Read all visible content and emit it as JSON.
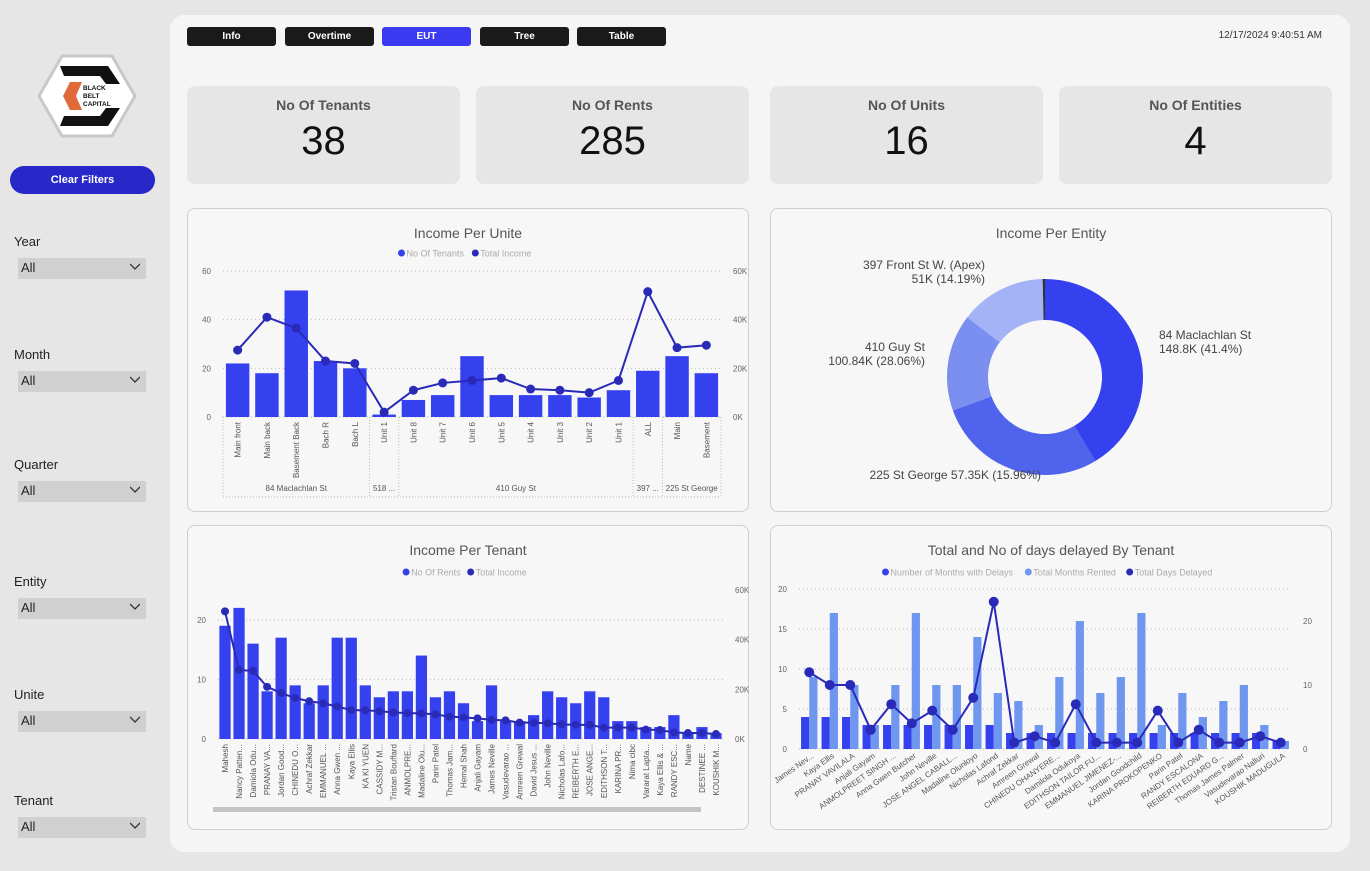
{
  "logo": {
    "text": [
      "BLACK",
      "BELT",
      "CAPITAL"
    ]
  },
  "sidebar": {
    "clear_filters": "Clear Filters",
    "filters": [
      {
        "label": "Year",
        "value": "All"
      },
      {
        "label": "Month",
        "value": "All"
      },
      {
        "label": "Quarter",
        "value": "All"
      },
      {
        "label": "Entity",
        "value": "All"
      },
      {
        "label": "Unite",
        "value": "All"
      },
      {
        "label": "Tenant",
        "value": "All"
      }
    ]
  },
  "tabs": [
    {
      "label": "Info"
    },
    {
      "label": "Overtime"
    },
    {
      "label": "EUT",
      "active": true
    },
    {
      "label": "Tree"
    },
    {
      "label": "Table"
    }
  ],
  "datetime": "12/17/2024 9:40:51 AM",
  "kpis": [
    {
      "title": "No Of Tenants",
      "value": "38"
    },
    {
      "title": "No Of Rents",
      "value": "285"
    },
    {
      "title": "No Of Units",
      "value": "16"
    },
    {
      "title": "No Of Entities",
      "value": "4"
    }
  ],
  "colors": {
    "bar": "#3540ee",
    "line": "#2a2ab8",
    "light_bar": "#7097f0",
    "donut": [
      "#3540ee",
      "#4f63ec",
      "#7b8ff0",
      "#a4b2f6",
      "#333333"
    ]
  },
  "chart_data": [
    {
      "type": "bar",
      "title": "Income Per Unite",
      "legend": [
        "No Of Tenants",
        "Total Income"
      ],
      "ylim": [
        0,
        60
      ],
      "y2lim": [
        0,
        60
      ],
      "yticks": [
        "0",
        "20",
        "40",
        "60"
      ],
      "y2ticks": [
        "0K",
        "20K",
        "40K",
        "60K"
      ],
      "grid": true,
      "legend_position": "top-center",
      "groups": [
        {
          "label": "84 Maclachlan St",
          "count": 5
        },
        {
          "label": "518 ...",
          "count": 1
        },
        {
          "label": "410 Guy St",
          "count": 8
        },
        {
          "label": "397 ...",
          "count": 1
        },
        {
          "label": "225 St George",
          "count": 2
        }
      ],
      "categories": [
        "Main front",
        "Main back",
        "Basement Back",
        "Bach R",
        "Bach L",
        "Unit 1",
        "Unit 8",
        "Unit 7",
        "Unit 6",
        "Unit 5",
        "Unit 4",
        "Unit 3",
        "Unit 2",
        "Unit 1",
        "ALL",
        "Main",
        "Basement"
      ],
      "series": [
        {
          "name": "No Of Tenants",
          "type": "bar",
          "values": [
            22,
            18,
            52,
            23,
            20,
            1,
            7,
            9,
            25,
            9,
            9,
            9,
            8,
            11,
            19,
            25,
            18
          ]
        },
        {
          "name": "Total Income",
          "type": "line",
          "axis": "right",
          "unit": "K",
          "values": [
            27.5,
            41,
            36.5,
            23,
            22,
            2,
            11,
            14,
            15,
            16,
            11.5,
            11,
            10,
            15,
            51.5,
            28.5,
            29.5
          ]
        }
      ]
    },
    {
      "type": "pie",
      "donut": true,
      "title": "Income Per Entity",
      "slices": [
        {
          "label": "84 Maclachlan St",
          "value_label": "148.8K (41.4%)",
          "value": 148.8
        },
        {
          "label": "410 Guy St",
          "value_label": "100.84K (28.06%)",
          "value": 100.84
        },
        {
          "label": "225 St George",
          "value_label": "57.35K (15.96%)",
          "value": 57.35
        },
        {
          "label": "397 Front St W. (Apex)",
          "value_label": "51K (14.19%)",
          "value": 51
        },
        {
          "label": "",
          "value_label": "",
          "value": 1.4
        }
      ]
    },
    {
      "type": "bar",
      "title": "Income Per Tenant",
      "legend": [
        "No Of Rents",
        "Total Income"
      ],
      "ylim": [
        0,
        25
      ],
      "y2lim": [
        0,
        60
      ],
      "yticks": [
        "0",
        "10",
        "20"
      ],
      "y2ticks": [
        "0K",
        "20K",
        "40K",
        "60K"
      ],
      "grid": true,
      "legend_position": "top-center",
      "categories": [
        "Mahesh",
        "Nancy Patten...",
        "Damiola Odu...",
        "PRANAY VA...",
        "Jordan Good...",
        "CHINEDU O...",
        "Achraf Zekkar",
        "EMMANUEL ...",
        "Anna Gwen ...",
        "Kaya Ellis",
        "KA KI YUEN",
        "CASSIDY M...",
        "Tristan Bouffard",
        "ANMOLPRE...",
        "Madaline Olu...",
        "Parin Patel",
        "Thomas Jam...",
        "Hemal Shah",
        "Anjali Gayam",
        "James Neville",
        "Vasudevarao ...",
        "Amreen Grewal",
        "David Jesus ...",
        "John Neville",
        "Nicholas Lafo...",
        "REIBERTH E...",
        "JOSE ANGE...",
        "EDITHSON T...",
        "KARINA PR...",
        "Nima cibc",
        "Vararat Lapta...",
        "Kaya Ellis & ...",
        "RANDY ESC...",
        "Name",
        "DESTINEE ...",
        "KOUSHIK M..."
      ],
      "series": [
        {
          "name": "No Of Rents",
          "type": "bar",
          "values": [
            19,
            22,
            16,
            8,
            17,
            9,
            6,
            9,
            17,
            17,
            9,
            7,
            8,
            8,
            14,
            7,
            8,
            6,
            3,
            9,
            3,
            3,
            4,
            8,
            7,
            6,
            8,
            7,
            3,
            3,
            2,
            2,
            4,
            1,
            2,
            1
          ]
        },
        {
          "name": "Total Income",
          "type": "line",
          "axis": "right",
          "unit": "K",
          "values": [
            51.4,
            27.8,
            27.4,
            21,
            18.5,
            16.5,
            15.2,
            14.4,
            13.1,
            11.6,
            11.6,
            11.2,
            10.7,
            10.4,
            10.3,
            9.9,
            9,
            8.7,
            8.3,
            7.7,
            7.5,
            6.6,
            6.6,
            6.3,
            5.9,
            5.7,
            5.7,
            4.6,
            4.6,
            4.6,
            3.8,
            3.6,
            2.6,
            2.4,
            2.4,
            2
          ]
        }
      ]
    },
    {
      "type": "bar",
      "title": "Total and No of days delayed By Tenant",
      "legend": [
        "Number of Months with Delays",
        "Total Months Rented",
        "Total Days Delayed"
      ],
      "ylim": [
        0,
        20
      ],
      "y2lim": [
        0,
        25
      ],
      "yticks": [
        "0",
        "5",
        "10",
        "15",
        "20"
      ],
      "y2ticks": [
        "0",
        "10",
        "20"
      ],
      "grid": true,
      "legend_position": "top-center",
      "categories": [
        "James Nev...",
        "Kaya Ellis",
        "PRANAY VAVILALA",
        "Anjali Gayam",
        "ANMOLPREET SINGH ...",
        "Anna Gwen Butcher",
        "John Neville",
        "JOSE ANGEL CABALL...",
        "Madaline Olunloyo",
        "Nicholas Lafond",
        "Achraf Zekkar",
        "Amreen Grewal",
        "CHINEDU OHANYERE...",
        "Damilola Odukoya",
        "EDITHSON TAILOR FU...",
        "EMMANUEL JIMENEZ-...",
        "Jordan Goodchild",
        "KARINA PROKOPENKO",
        "Parin Patel",
        "RANDY ESCALONA",
        "REIBERTH EDUARD G...",
        "Thomas James Palmer",
        "Vasudevarao Nalluri",
        "KOUSHIK MADUGULA"
      ],
      "series": [
        {
          "name": "Number of Months with Delays",
          "type": "bar",
          "values": [
            4,
            4,
            4,
            3,
            3,
            3,
            3,
            3,
            3,
            3,
            2,
            2,
            2,
            2,
            2,
            2,
            2,
            2,
            2,
            2,
            2,
            2,
            2,
            1
          ]
        },
        {
          "name": "Total Months Rented",
          "type": "bar",
          "values": [
            9,
            17,
            8,
            3,
            8,
            17,
            8,
            8,
            14,
            7,
            6,
            3,
            9,
            16,
            7,
            9,
            17,
            3,
            7,
            4,
            6,
            8,
            3,
            1
          ]
        },
        {
          "name": "Total Days Delayed",
          "type": "line",
          "axis": "right",
          "values": [
            12,
            10,
            10,
            3,
            7,
            4,
            6,
            3,
            8,
            23,
            1,
            2,
            1,
            7,
            1,
            1,
            1,
            6,
            1,
            3,
            1,
            1,
            2,
            1
          ]
        }
      ]
    }
  ]
}
